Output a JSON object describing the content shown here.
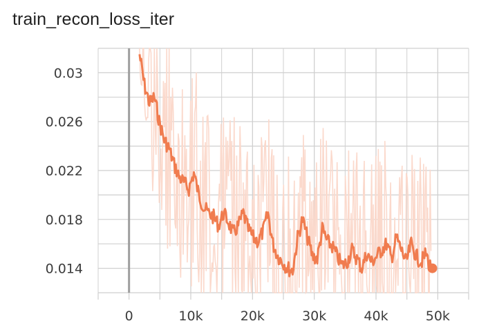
{
  "chart_data": {
    "type": "line",
    "title": "train_recon_loss_iter",
    "xlabel": "",
    "ylabel": "",
    "xlim": [
      -5000,
      55000
    ],
    "ylim": [
      0.012,
      0.032
    ],
    "x_ticks": [
      0,
      10000,
      20000,
      30000,
      40000,
      50000
    ],
    "x_tick_labels": [
      "0",
      "10k",
      "20k",
      "30k",
      "40k",
      "50k"
    ],
    "y_ticks": [
      0.014,
      0.018,
      0.022,
      0.026,
      0.03
    ],
    "y_tick_labels": [
      "0.014",
      "0.018",
      "0.022",
      "0.026",
      "0.03"
    ],
    "grid": true,
    "legend": "none",
    "colors": {
      "smoothed": "#f07c4f",
      "raw": "#fbd9cc",
      "grid": "#cfcfcf",
      "zero_line": "#9e9e9e"
    },
    "series": [
      {
        "x": [
          1700,
          2500,
          3300,
          4100,
          4900,
          5700,
          6500,
          7300,
          8100,
          8900,
          9700,
          10500,
          11300,
          12100,
          12900,
          13700,
          14500,
          15300,
          16100,
          16900,
          17700,
          18500,
          19300,
          20100,
          20900,
          21700,
          22500,
          23300,
          24100,
          24900,
          25700,
          26500,
          27300,
          28100,
          28900,
          29700,
          30500,
          31300,
          32100,
          32900,
          33700,
          34500,
          35300,
          36100,
          36900,
          37700,
          38500,
          39300,
          40100,
          40900,
          41700,
          42500,
          43300,
          44100,
          44900,
          45700,
          46500,
          47300,
          48100,
          48900
        ],
        "y": [
          0.0315,
          0.029,
          0.0275,
          0.028,
          0.026,
          0.0245,
          0.0238,
          0.0225,
          0.0215,
          0.021,
          0.0205,
          0.0218,
          0.02,
          0.019,
          0.0185,
          0.0182,
          0.0175,
          0.0185,
          0.0178,
          0.0168,
          0.0175,
          0.0185,
          0.0172,
          0.0165,
          0.0162,
          0.017,
          0.0185,
          0.016,
          0.015,
          0.0145,
          0.014,
          0.0138,
          0.0165,
          0.018,
          0.0165,
          0.015,
          0.0148,
          0.0172,
          0.0162,
          0.0158,
          0.015,
          0.0142,
          0.0145,
          0.0155,
          0.0148,
          0.014,
          0.0152,
          0.0145,
          0.015,
          0.0155,
          0.016,
          0.0148,
          0.0165,
          0.0155,
          0.0145,
          0.016,
          0.015,
          0.0145,
          0.0152,
          0.014
        ]
      }
    ]
  }
}
